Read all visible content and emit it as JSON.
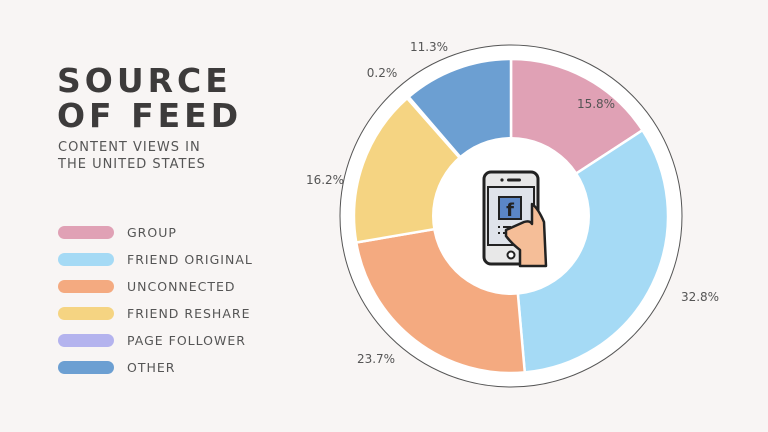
{
  "header": {
    "title_line1": "SOURCE",
    "title_line2": "OF FEED",
    "subtitle_line1": "CONTENT VIEWS IN",
    "subtitle_line2": "THE UNITED STATES"
  },
  "legend": [
    {
      "label": "GROUP",
      "color": "#e0a1b5"
    },
    {
      "label": "FRIEND ORIGINAL",
      "color": "#a5daf5"
    },
    {
      "label": "UNCONNECTED",
      "color": "#f4aa80"
    },
    {
      "label": "FRIEND RESHARE",
      "color": "#f5d482"
    },
    {
      "label": "PAGE FOLLOWER",
      "color": "#b4b3ee"
    },
    {
      "label": "OTHER",
      "color": "#6c9fd2"
    }
  ],
  "center_icon": "smartphone-facebook-hand-icon",
  "chart_data": {
    "type": "pie",
    "title": "SOURCE OF FEED",
    "subtitle": "CONTENT VIEWS IN THE UNITED STATES",
    "categories": [
      "GROUP",
      "FRIEND ORIGINAL",
      "UNCONNECTED",
      "FRIEND RESHARE",
      "PAGE FOLLOWER",
      "OTHER"
    ],
    "values": [
      15.8,
      32.8,
      23.7,
      16.2,
      0.2,
      11.3
    ],
    "labels": [
      "15.8%",
      "32.8%",
      "23.7%",
      "16.2%",
      "0.2%",
      "11.3%"
    ],
    "colors": [
      "#e0a1b5",
      "#a5daf5",
      "#f4aa80",
      "#f5d482",
      "#b4b3ee",
      "#6c9fd2"
    ],
    "donut": true,
    "legend_position": "left"
  }
}
